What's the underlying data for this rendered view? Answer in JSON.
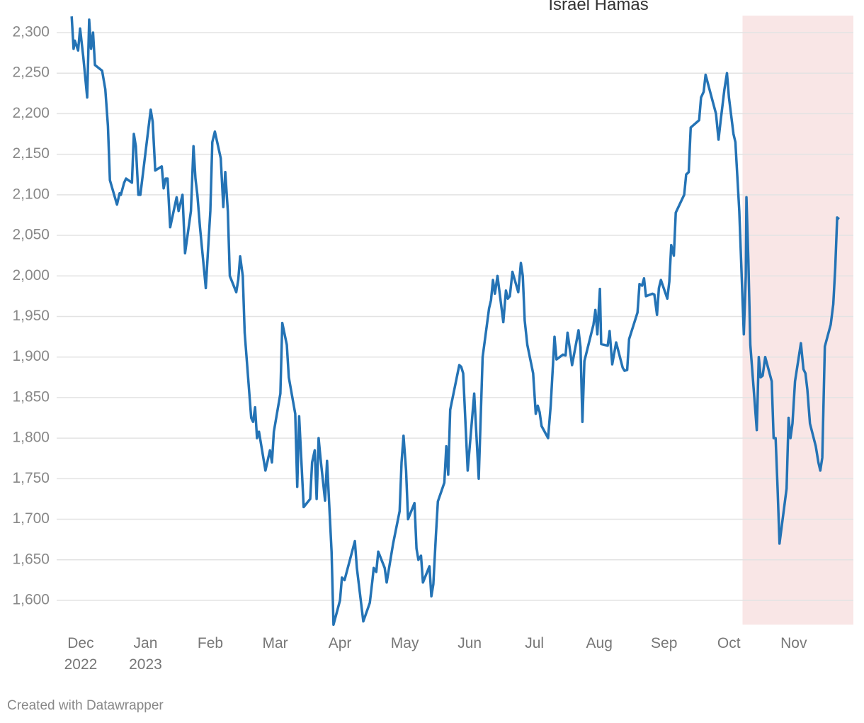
{
  "chart_data": {
    "type": "line",
    "annotation": "Israel Hamas",
    "credit": "Created with Datawrapper",
    "highlight": {
      "xlim": [
        10.21,
        11.92
      ],
      "color": "#f9e6e6"
    },
    "xlim": [
      -0.24,
      11.92
    ],
    "xticks": [
      {
        "value": 0,
        "label": "Dec\n2022"
      },
      {
        "value": 1,
        "label": "Jan\n2023"
      },
      {
        "value": 2,
        "label": "Feb"
      },
      {
        "value": 3,
        "label": "Mar"
      },
      {
        "value": 4,
        "label": "Apr"
      },
      {
        "value": 5,
        "label": "May"
      },
      {
        "value": 6,
        "label": "Jun"
      },
      {
        "value": 7,
        "label": "Jul"
      },
      {
        "value": 8,
        "label": "Aug"
      },
      {
        "value": 9,
        "label": "Sep"
      },
      {
        "value": 10,
        "label": "Oct"
      },
      {
        "value": 11,
        "label": "Nov"
      }
    ],
    "ylim": [
      1570,
      2320
    ],
    "yticks": [
      {
        "value": 1600,
        "label": "1,600"
      },
      {
        "value": 1650,
        "label": "1,650"
      },
      {
        "value": 1700,
        "label": "1,700"
      },
      {
        "value": 1750,
        "label": "1,750"
      },
      {
        "value": 1800,
        "label": "1,800"
      },
      {
        "value": 1850,
        "label": "1,850"
      },
      {
        "value": 1900,
        "label": "1,900"
      },
      {
        "value": 1950,
        "label": "1,950"
      },
      {
        "value": 2000,
        "label": "2,000"
      },
      {
        "value": 2050,
        "label": "2,050"
      },
      {
        "value": 2100,
        "label": "2,100"
      },
      {
        "value": 2150,
        "label": "2,150"
      },
      {
        "value": 2200,
        "label": "2,200"
      },
      {
        "value": 2250,
        "label": "2,250"
      },
      {
        "value": 2300,
        "label": "2,300"
      }
    ],
    "grid": true,
    "color": "#2473b5",
    "x": [
      -0.14,
      -0.11,
      -0.09,
      -0.04,
      -0.01,
      0.04,
      0.1,
      0.13,
      0.16,
      0.19,
      0.22,
      0.33,
      0.38,
      0.42,
      0.45,
      0.56,
      0.6,
      0.62,
      0.67,
      0.7,
      0.79,
      0.82,
      0.85,
      0.89,
      0.92,
      1.08,
      1.11,
      1.15,
      1.25,
      1.28,
      1.31,
      1.34,
      1.38,
      1.48,
      1.51,
      1.57,
      1.61,
      1.7,
      1.74,
      1.77,
      1.8,
      1.84,
      1.93,
      2.0,
      2.03,
      2.07,
      2.16,
      2.2,
      2.23,
      2.27,
      2.3,
      2.4,
      2.43,
      2.46,
      2.5,
      2.53,
      2.63,
      2.66,
      2.69,
      2.72,
      2.75,
      2.85,
      2.92,
      2.95,
      2.98,
      3.08,
      3.11,
      3.18,
      3.21,
      3.31,
      3.34,
      3.37,
      3.44,
      3.54,
      3.57,
      3.61,
      3.64,
      3.67,
      3.7,
      3.77,
      3.8,
      3.87,
      3.9,
      4.0,
      4.03,
      4.07,
      4.23,
      4.26,
      4.36,
      4.46,
      4.5,
      4.52,
      4.56,
      4.59,
      4.69,
      4.72,
      4.82,
      4.92,
      4.95,
      4.98,
      5.02,
      5.05,
      5.15,
      5.18,
      5.21,
      5.25,
      5.28,
      5.38,
      5.41,
      5.44,
      5.48,
      5.51,
      5.61,
      5.64,
      5.67,
      5.7,
      5.84,
      5.87,
      5.9,
      5.97,
      6.07,
      6.14,
      6.2,
      6.3,
      6.33,
      6.36,
      6.39,
      6.43,
      6.52,
      6.56,
      6.59,
      6.62,
      6.66,
      6.75,
      6.79,
      6.82,
      6.85,
      6.89,
      6.98,
      7.02,
      7.05,
      7.08,
      7.11,
      7.21,
      7.25,
      7.31,
      7.34,
      7.44,
      7.48,
      7.51,
      7.58,
      7.68,
      7.71,
      7.74,
      7.77,
      7.91,
      7.94,
      7.97,
      8.01,
      8.03,
      8.13,
      8.16,
      8.2,
      8.26,
      8.36,
      8.39,
      8.43,
      8.46,
      8.59,
      8.62,
      8.66,
      8.69,
      8.72,
      8.82,
      8.85,
      8.89,
      8.92,
      8.95,
      9.05,
      9.08,
      9.11,
      9.15,
      9.18,
      9.31,
      9.34,
      9.38,
      9.41,
      9.54,
      9.57,
      9.61,
      9.64,
      9.8,
      9.84,
      9.87,
      9.93,
      9.97,
      10.0,
      10.07,
      10.1,
      10.16,
      10.23,
      10.26,
      10.27,
      10.3,
      10.33,
      10.43,
      10.46,
      10.49,
      10.52,
      10.56,
      10.66,
      10.69,
      10.72,
      10.75,
      10.78,
      10.89,
      10.92,
      10.95,
      10.98,
      11.02,
      11.11,
      11.15,
      11.18,
      11.21,
      11.25,
      11.34,
      11.38,
      11.41,
      11.44,
      11.48,
      11.57,
      11.61,
      11.64,
      11.67,
      11.7
    ],
    "values": [
      2320,
      2280,
      2290,
      2278,
      2305,
      2270,
      2220,
      2316,
      2280,
      2300,
      2260,
      2253,
      2230,
      2185,
      2118,
      2088,
      2102,
      2100,
      2115,
      2120,
      2115,
      2175,
      2160,
      2100,
      2100,
      2205,
      2190,
      2130,
      2135,
      2108,
      2120,
      2120,
      2060,
      2097,
      2080,
      2100,
      2028,
      2080,
      2160,
      2120,
      2100,
      2060,
      1985,
      2080,
      2165,
      2178,
      2145,
      2085,
      2128,
      2080,
      2000,
      1980,
      1995,
      2024,
      2000,
      1930,
      1825,
      1820,
      1838,
      1800,
      1808,
      1760,
      1785,
      1770,
      1808,
      1855,
      1942,
      1915,
      1875,
      1830,
      1740,
      1827,
      1715,
      1725,
      1770,
      1785,
      1725,
      1800,
      1775,
      1723,
      1772,
      1660,
      1570,
      1600,
      1628,
      1625,
      1673,
      1640,
      1574,
      1597,
      1625,
      1640,
      1635,
      1660,
      1640,
      1622,
      1670,
      1710,
      1770,
      1803,
      1760,
      1700,
      1720,
      1664,
      1650,
      1655,
      1622,
      1642,
      1605,
      1620,
      1680,
      1722,
      1745,
      1790,
      1755,
      1835,
      1890,
      1888,
      1880,
      1760,
      1855,
      1750,
      1900,
      1960,
      1970,
      1995,
      1978,
      2000,
      1943,
      1982,
      1972,
      1975,
      2005,
      1980,
      2016,
      2000,
      1945,
      1915,
      1880,
      1830,
      1840,
      1832,
      1815,
      1800,
      1840,
      1925,
      1897,
      1903,
      1902,
      1930,
      1890,
      1933,
      1912,
      1820,
      1895,
      1940,
      1958,
      1928,
      1984,
      1916,
      1914,
      1932,
      1891,
      1918,
      1887,
      1883,
      1884,
      1922,
      1955,
      1990,
      1988,
      1997,
      1975,
      1978,
      1977,
      1952,
      1985,
      1995,
      1972,
      1993,
      2038,
      2025,
      2078,
      2100,
      2125,
      2128,
      2183,
      2192,
      2220,
      2227,
      2248,
      2200,
      2168,
      2190,
      2230,
      2250,
      2220,
      2175,
      2165,
      2080,
      1928,
      2000,
      2097,
      2020,
      1915,
      1810,
      1900,
      1875,
      1877,
      1900,
      1870,
      1800,
      1800,
      1740,
      1670,
      1738,
      1825,
      1800,
      1818,
      1870,
      1917,
      1885,
      1880,
      1860,
      1818,
      1790,
      1770,
      1760,
      1776,
      1913,
      1940,
      1965,
      2010,
      2072,
      2070
    ]
  }
}
